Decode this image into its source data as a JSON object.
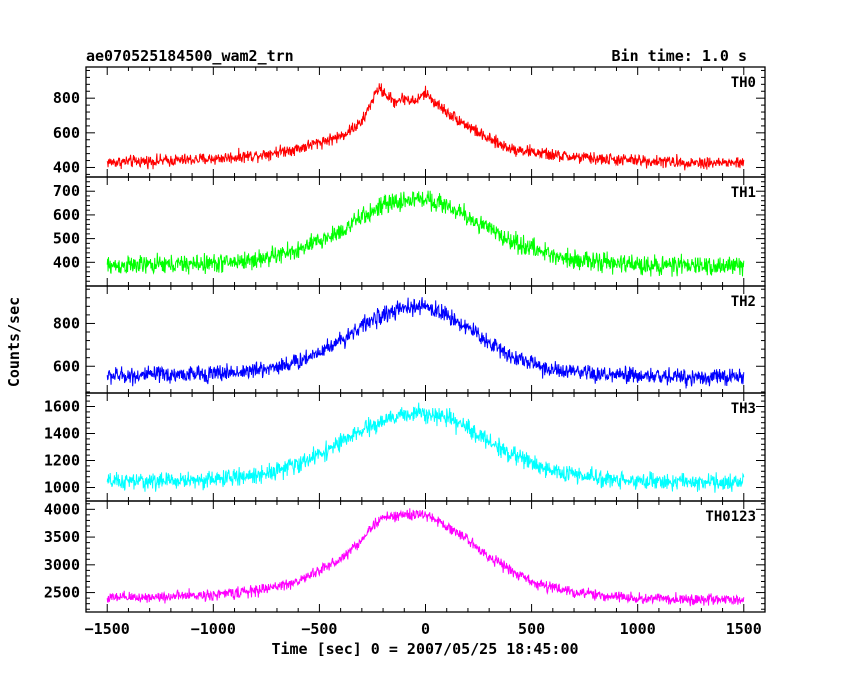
{
  "header": {
    "left_title": "ae070525184500_wam2_trn",
    "right_title": "Bin time: 1.0 s"
  },
  "ylabel": "Counts/sec",
  "xlabel": "Time [sec] 0 = 2007/05/25 18:45:00",
  "colors": {
    "axes": "#000000",
    "background": "#ffffff"
  },
  "chart_data": [
    {
      "type": "line",
      "series_name": "TH0",
      "color": "#ff0000",
      "xlim": [
        -1600,
        1600
      ],
      "ylim": [
        345,
        980
      ],
      "yticks": [
        400,
        600,
        800
      ],
      "ytick_labels": [
        "400",
        "600",
        "800"
      ],
      "x": [
        -1500,
        -1200,
        -1000,
        -800,
        -600,
        -400,
        -300,
        -250,
        -220,
        -150,
        -100,
        -50,
        0,
        50,
        100,
        200,
        300,
        400,
        600,
        800,
        1000,
        1200,
        1500
      ],
      "y": [
        430,
        440,
        450,
        470,
        510,
        580,
        660,
        790,
        860,
        780,
        800,
        780,
        830,
        770,
        720,
        640,
        560,
        510,
        470,
        450,
        440,
        430,
        425
      ],
      "noise": 25
    },
    {
      "type": "line",
      "series_name": "TH1",
      "color": "#00ff00",
      "xlim": [
        -1600,
        1600
      ],
      "ylim": [
        300,
        760
      ],
      "yticks": [
        400,
        500,
        600,
        700
      ],
      "ytick_labels": [
        "400",
        "500",
        "600",
        "700"
      ],
      "x": [
        -1500,
        -1200,
        -1000,
        -800,
        -600,
        -400,
        -300,
        -200,
        -100,
        0,
        100,
        200,
        300,
        400,
        600,
        800,
        1000,
        1200,
        1500
      ],
      "y": [
        385,
        390,
        395,
        410,
        450,
        530,
        590,
        640,
        660,
        670,
        640,
        590,
        540,
        490,
        430,
        400,
        390,
        385,
        385
      ],
      "noise": 28
    },
    {
      "type": "line",
      "series_name": "TH2",
      "color": "#0000ff",
      "xlim": [
        -1600,
        1600
      ],
      "ylim": [
        475,
        975
      ],
      "yticks": [
        600,
        800
      ],
      "ytick_labels": [
        "600",
        "800"
      ],
      "x": [
        -1500,
        -1200,
        -1000,
        -800,
        -600,
        -400,
        -300,
        -200,
        -100,
        0,
        100,
        200,
        300,
        400,
        600,
        800,
        1000,
        1200,
        1500
      ],
      "y": [
        555,
        560,
        565,
        580,
        620,
        720,
        790,
        840,
        870,
        880,
        840,
        780,
        710,
        650,
        580,
        560,
        555,
        550,
        550
      ],
      "noise": 28
    },
    {
      "type": "line",
      "series_name": "TH3",
      "color": "#00ffff",
      "xlim": [
        -1600,
        1600
      ],
      "ylim": [
        900,
        1700
      ],
      "yticks": [
        1000,
        1200,
        1400,
        1600
      ],
      "ytick_labels": [
        "1000",
        "1200",
        "1400",
        "1600"
      ],
      "x": [
        -1500,
        -1200,
        -1000,
        -800,
        -600,
        -400,
        -300,
        -200,
        -100,
        0,
        100,
        200,
        300,
        400,
        600,
        800,
        1000,
        1200,
        1500
      ],
      "y": [
        1040,
        1050,
        1060,
        1090,
        1170,
        1330,
        1420,
        1490,
        1540,
        1560,
        1510,
        1440,
        1340,
        1250,
        1120,
        1070,
        1050,
        1040,
        1040
      ],
      "noise": 45
    },
    {
      "type": "line",
      "series_name": "TH0123",
      "color": "#ff00ff",
      "xlim": [
        -1600,
        1600
      ],
      "ylim": [
        2150,
        4150
      ],
      "yticks": [
        2500,
        3000,
        3500,
        4000
      ],
      "ytick_labels": [
        "2500",
        "3000",
        "3500",
        "4000"
      ],
      "x": [
        -1500,
        -1200,
        -1000,
        -800,
        -600,
        -400,
        -300,
        -250,
        -200,
        -100,
        0,
        100,
        200,
        300,
        400,
        500,
        600,
        800,
        1000,
        1200,
        1500
      ],
      "y": [
        2400,
        2430,
        2460,
        2530,
        2700,
        3100,
        3450,
        3700,
        3850,
        3900,
        3900,
        3700,
        3450,
        3150,
        2900,
        2700,
        2580,
        2450,
        2400,
        2380,
        2360
      ],
      "noise": 70
    }
  ],
  "xaxis": {
    "ticks": [
      -1500,
      -1000,
      -500,
      0,
      500,
      1000,
      1500
    ],
    "tick_labels": [
      "−1500",
      "−1000",
      "−500",
      "0",
      "500",
      "1000",
      "1500"
    ],
    "minor_step": 100
  }
}
